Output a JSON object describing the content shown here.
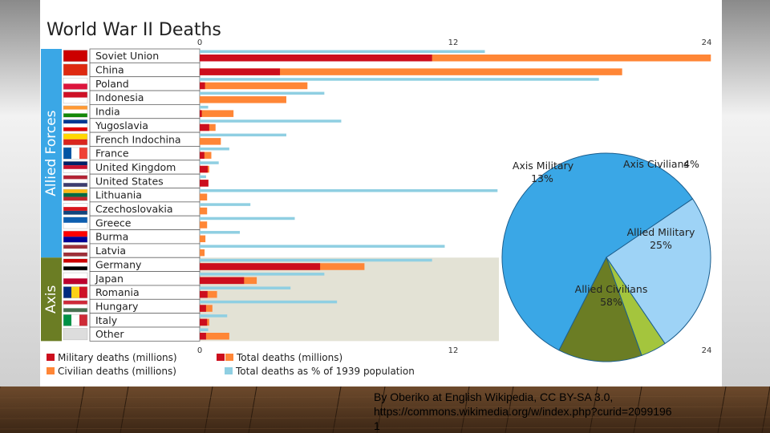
{
  "chart_data": {
    "type": "bar",
    "title": "World War II Deaths",
    "group_labels": [
      "Allied Forces",
      "Axis"
    ],
    "x_ticks": [
      "0",
      "12",
      "24"
    ],
    "xlim": [
      0,
      24
    ],
    "categories": [
      "Soviet Union",
      "China",
      "Poland",
      "Indonesia",
      "India",
      "Yugoslavia",
      "French Indochina",
      "France",
      "United Kingdom",
      "United States",
      "Lithuania",
      "Czechoslovakia",
      "Greece",
      "Burma",
      "Latvia",
      "Germany",
      "Japan",
      "Romania",
      "Hungary",
      "Italy",
      "Other"
    ],
    "group": [
      "Allied Forces",
      "Allied Forces",
      "Allied Forces",
      "Allied Forces",
      "Allied Forces",
      "Allied Forces",
      "Allied Forces",
      "Allied Forces",
      "Allied Forces",
      "Allied Forces",
      "Allied Forces",
      "Allied Forces",
      "Allied Forces",
      "Allied Forces",
      "Allied Forces",
      "Axis",
      "Axis",
      "Axis",
      "Axis",
      "Axis",
      "Axis"
    ],
    "series": [
      {
        "name": "Military deaths (millions)",
        "color": "#cc0e1d",
        "values": [
          11.0,
          3.8,
          0.25,
          0,
          0.1,
          0.45,
          0,
          0.22,
          0.38,
          0.41,
          0,
          0,
          0,
          0,
          0,
          5.7,
          2.1,
          0.37,
          0.3,
          0.35,
          0.3
        ]
      },
      {
        "name": "Total deaths (millions)",
        "color": "#ff8636",
        "values": [
          24.2,
          20.0,
          5.1,
          4.1,
          1.6,
          0.75,
          1.0,
          0.55,
          0.45,
          0.41,
          0.35,
          0.35,
          0.35,
          0.27,
          0.23,
          7.8,
          2.7,
          0.82,
          0.6,
          0.45,
          1.4
        ]
      },
      {
        "name": "Civilian deaths (millions)",
        "color": "#ff8636",
        "values": [
          13.2,
          16.2,
          4.85,
          4.1,
          1.5,
          0.3,
          1.0,
          0.33,
          0.07,
          0,
          0.35,
          0.35,
          0.35,
          0.27,
          0.23,
          2.1,
          0.6,
          0.45,
          0.3,
          0.1,
          1.1
        ]
      },
      {
        "name": "Total deaths as % of 1939 population",
        "color": "#8fcfe2",
        "values": [
          13.5,
          0,
          18.9,
          5.9,
          0.4,
          6.7,
          4.1,
          1.4,
          0.9,
          0.3,
          14.1,
          2.4,
          4.5,
          1.9,
          11.6,
          11.0,
          5.9,
          4.3,
          6.5,
          1.3,
          0.4
        ]
      }
    ],
    "legend": [
      "Military deaths (millions)",
      "Total deaths (millions)",
      "Civilian deaths (millions)",
      "Total deaths as % of 1939 population"
    ],
    "legend_position": "bottom",
    "pie": {
      "type": "pie",
      "slices": [
        {
          "label": "Allied Civilians",
          "value": 58,
          "text": "58%",
          "color": "#3aa7e6"
        },
        {
          "label": "Allied Military",
          "value": 25,
          "text": "25%",
          "color": "#9ed3f6"
        },
        {
          "label": "Axis Civilians",
          "value": 4,
          "text": "4%",
          "color": "#a4c53d"
        },
        {
          "label": "Axis Military",
          "value": 13,
          "text": "13%",
          "color": "#6b7d24"
        }
      ]
    }
  },
  "credit": {
    "line1": "By Oberiko at English Wikipedia, CC BY-SA 3.0,",
    "line2": "https://commons.wikimedia.org/w/index.php?curid=2099196",
    "line3": "1"
  },
  "colors": {
    "allied_band": "#3aa7e6",
    "axis_band": "#6b7d24",
    "panel": "#ffffff",
    "axis_shade": "#e3e2d5"
  }
}
